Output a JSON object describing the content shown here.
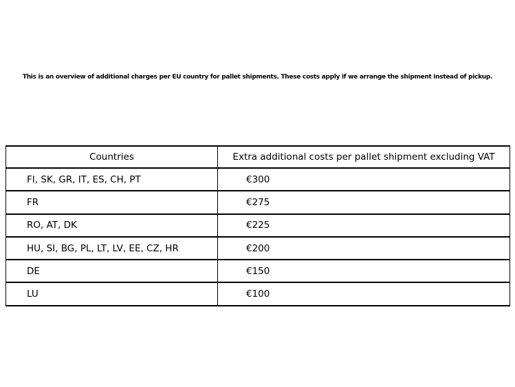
{
  "intro": {
    "text": "This is an overview of additional charges per EU country for pallet shipments. These costs apply if we arrange the shipment instead of pickup."
  },
  "table": {
    "headers": [
      "Countries",
      "Extra additional costs per pallet shipment excluding VAT"
    ],
    "rows": [
      {
        "countries": "FI, SK, GR, IT, ES, CH, PT",
        "cost": "€300"
      },
      {
        "countries": "FR",
        "cost": "€275"
      },
      {
        "countries": "RO, AT, DK",
        "cost": "€225"
      },
      {
        "countries": "HU, SI, BG, PL, LT, LV, EE, CZ, HR",
        "cost": "€200"
      },
      {
        "countries": "DE",
        "cost": "€150"
      },
      {
        "countries": "LU",
        "cost": "€100"
      }
    ]
  },
  "colors": {
    "background": "#ffffff",
    "border": "#000000",
    "text": "#000000"
  }
}
